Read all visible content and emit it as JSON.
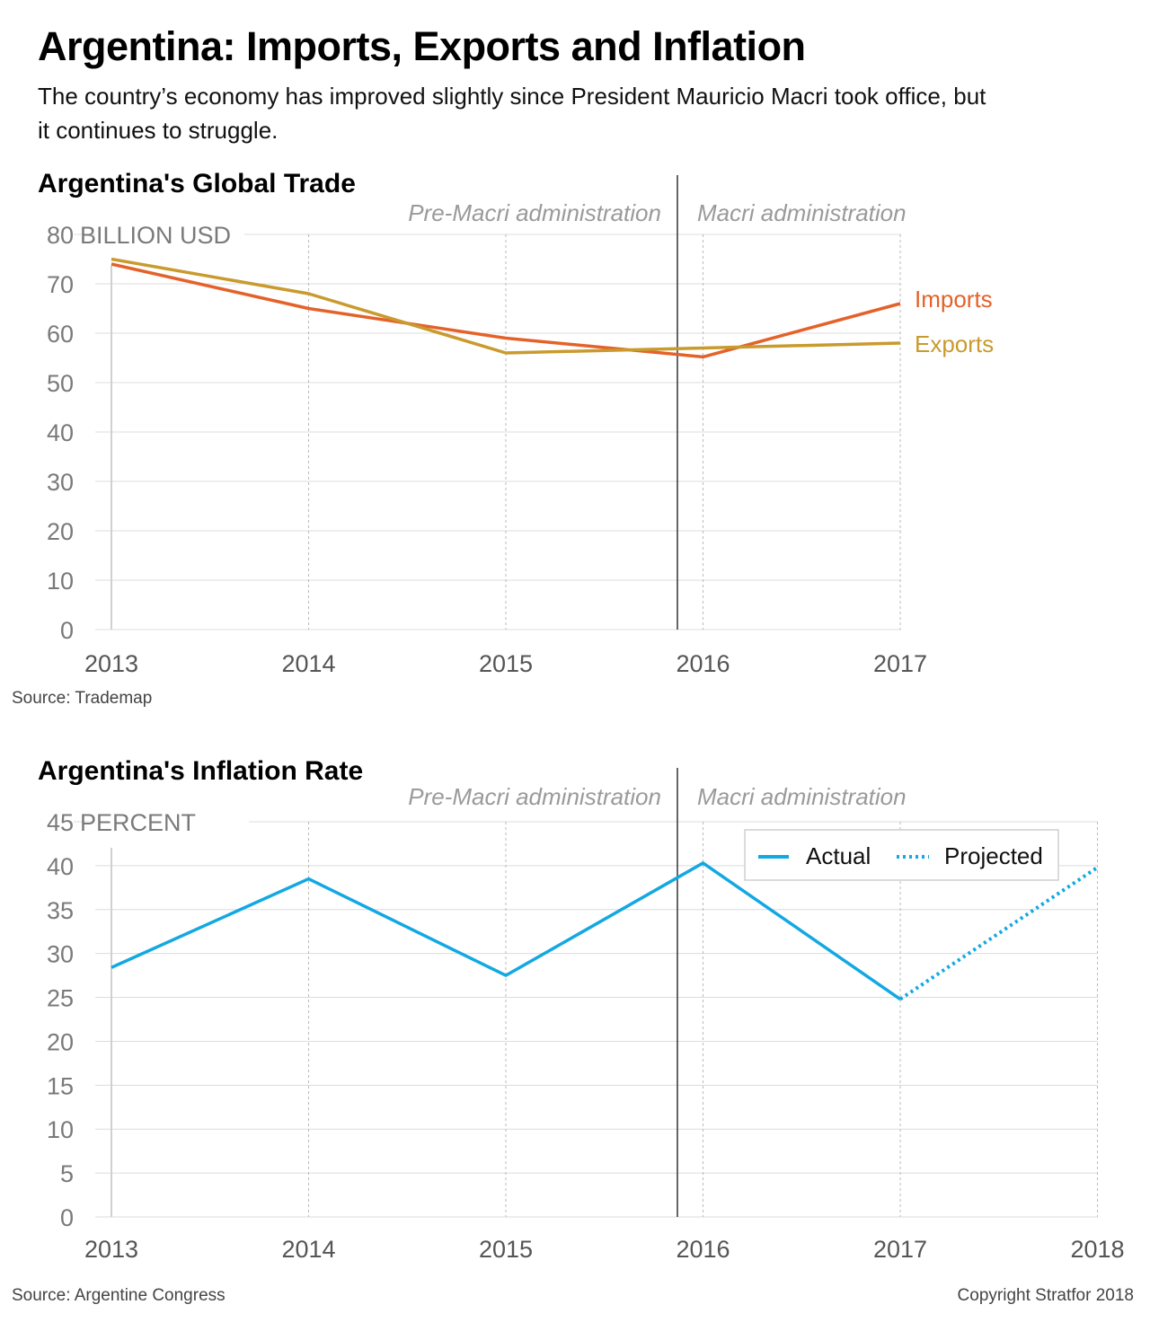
{
  "header": {
    "title": "Argentina: Imports, Exports and Inflation",
    "subtitle": "The country’s economy has improved slightly since President Mauricio Macri took office, but it continues to struggle."
  },
  "colors": {
    "imports": "#e4622a",
    "exports": "#c99a2e",
    "inflation": "#13a8e2",
    "grid": "#dcdcdc",
    "divider": "#333333"
  },
  "footer": {
    "copyright": "Copyright Stratfor 2018"
  },
  "chart_data": [
    {
      "type": "line",
      "title": "Argentina's Global Trade",
      "ylabel": "BILLION USD",
      "x": [
        "2013",
        "2014",
        "2015",
        "2016",
        "2017"
      ],
      "ylim": [
        0,
        80
      ],
      "yticks": [
        0,
        10,
        20,
        30,
        40,
        50,
        60,
        70,
        80
      ],
      "era_labels": [
        "Pre-Macri administration",
        "Macri administration"
      ],
      "era_divider_x": 2015.87,
      "series": [
        {
          "name": "Imports",
          "values": [
            74,
            65,
            59,
            55.2,
            66
          ]
        },
        {
          "name": "Exports",
          "values": [
            75,
            68,
            56,
            57,
            58
          ]
        }
      ],
      "grid": true,
      "source": "Source: Trademap"
    },
    {
      "type": "line",
      "title": "Argentina's Inflation Rate",
      "ylabel": "PERCENT",
      "x": [
        "2013",
        "2014",
        "2015",
        "2016",
        "2017",
        "2018"
      ],
      "ylim": [
        0,
        45
      ],
      "yticks": [
        0,
        5,
        10,
        15,
        20,
        25,
        30,
        35,
        40,
        45
      ],
      "era_labels": [
        "Pre-Macri administration",
        "Macri administration"
      ],
      "era_divider_x": 2015.87,
      "series": [
        {
          "name": "Actual",
          "values": [
            28.4,
            38.5,
            27.5,
            40.3,
            24.8,
            null
          ]
        },
        {
          "name": "Projected",
          "values": [
            null,
            null,
            null,
            null,
            24.8,
            39.8
          ]
        }
      ],
      "legend": "top-right",
      "grid": true,
      "source": "Source: Argentine Congress"
    }
  ]
}
